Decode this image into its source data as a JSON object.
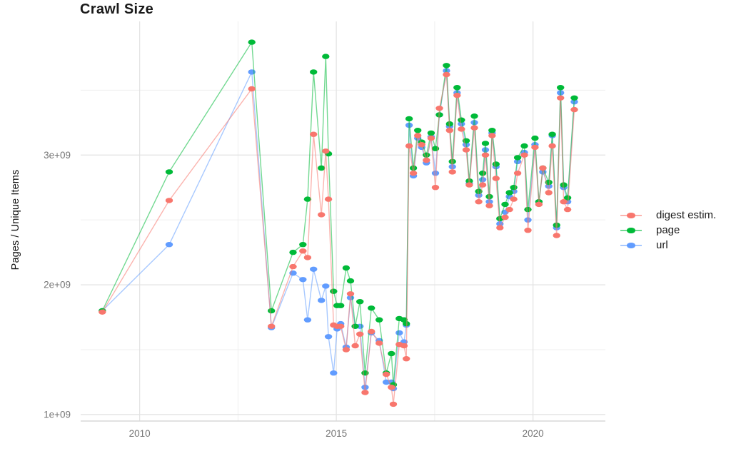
{
  "title": "Crawl Size",
  "y_axis": {
    "label": "Pages / Unique Items",
    "tick_labels": [
      "1e+09",
      "2e+09",
      "3e+09"
    ],
    "tick_values": [
      1,
      2,
      3
    ],
    "minor_tick_values": [
      1.5,
      2.5,
      3.5
    ],
    "range": [
      0.95,
      4.03
    ]
  },
  "x_axis": {
    "tick_labels": [
      "2010",
      "2015",
      "2020"
    ],
    "tick_values": [
      2010,
      2015,
      2020
    ],
    "minor_tick_values": [
      2012.5,
      2017.5
    ],
    "range": [
      2008.5,
      2021.84
    ]
  },
  "legend": {
    "items": [
      {
        "label": "digest estim.",
        "color": "#F8766D"
      },
      {
        "label": "page",
        "color": "#00BA38"
      },
      {
        "label": "url",
        "color": "#619CFF"
      }
    ]
  },
  "colors": {
    "digest": "#F8766D",
    "page": "#00BA38",
    "url": "#619CFF",
    "grid_major": "#e2e2e2",
    "grid_minor": "#efefef",
    "axis_line": "#d8d8d8",
    "tick_label": "#757575"
  },
  "chart_data": {
    "type": "line",
    "title": "Crawl Size",
    "xlabel": "",
    "ylabel": "Pages / Unique Items",
    "y_unit": "1e9 items",
    "xlim": [
      2008.5,
      2021.84
    ],
    "ylim_1e9": [
      0.95,
      4.03
    ],
    "grid": "on",
    "legend_position": "right",
    "x": [
      2009.05,
      2010.75,
      2012.85,
      2013.35,
      2013.9,
      2014.15,
      2014.27,
      2014.42,
      2014.62,
      2014.73,
      2014.8,
      2014.93,
      2015.02,
      2015.11,
      2015.25,
      2015.36,
      2015.48,
      2015.6,
      2015.73,
      2015.89,
      2016.09,
      2016.27,
      2016.4,
      2016.45,
      2016.6,
      2016.72,
      2016.78,
      2016.85,
      2016.96,
      2017.07,
      2017.17,
      2017.29,
      2017.41,
      2017.52,
      2017.62,
      2017.8,
      2017.88,
      2017.95,
      2018.07,
      2018.18,
      2018.3,
      2018.38,
      2018.51,
      2018.62,
      2018.72,
      2018.79,
      2018.89,
      2018.96,
      2019.06,
      2019.16,
      2019.29,
      2019.4,
      2019.51,
      2019.61,
      2019.78,
      2019.87,
      2020.05,
      2020.15,
      2020.25,
      2020.4,
      2020.49,
      2020.6,
      2020.7,
      2020.78,
      2020.88,
      2021.05
    ],
    "series": [
      {
        "name": "url",
        "color": "#619CFF",
        "values_1e9": [
          1.8,
          2.31,
          3.64,
          1.67,
          2.09,
          2.04,
          1.73,
          2.12,
          1.88,
          1.99,
          1.6,
          1.32,
          1.66,
          1.7,
          1.52,
          1.9,
          1.68,
          1.68,
          1.21,
          1.63,
          1.57,
          1.25,
          1.25,
          1.2,
          1.63,
          1.56,
          1.69,
          3.23,
          2.84,
          3.13,
          3.06,
          2.94,
          3.14,
          2.86,
          3.31,
          3.65,
          3.22,
          2.91,
          3.48,
          3.24,
          3.08,
          2.78,
          3.25,
          2.69,
          2.81,
          3.04,
          2.64,
          3.17,
          2.91,
          2.47,
          2.56,
          2.68,
          2.72,
          2.95,
          3.02,
          2.5,
          3.08,
          2.64,
          2.87,
          2.76,
          3.15,
          2.44,
          3.48,
          2.75,
          2.64,
          3.41
        ]
      },
      {
        "name": "page",
        "color": "#00BA38",
        "values_1e9": [
          1.8,
          2.87,
          3.87,
          1.8,
          2.25,
          2.31,
          2.66,
          3.64,
          2.9,
          3.76,
          3.01,
          1.95,
          1.84,
          1.84,
          2.13,
          2.03,
          1.68,
          1.87,
          1.32,
          1.82,
          1.73,
          1.32,
          1.47,
          1.23,
          1.74,
          1.73,
          1.7,
          3.28,
          2.9,
          3.19,
          3.1,
          3.0,
          3.17,
          3.05,
          3.31,
          3.69,
          3.24,
          2.95,
          3.52,
          3.27,
          3.11,
          2.8,
          3.3,
          2.72,
          2.86,
          3.09,
          2.68,
          3.19,
          2.93,
          2.51,
          2.62,
          2.71,
          2.75,
          2.98,
          3.07,
          2.58,
          3.13,
          2.64,
          2.9,
          2.79,
          3.16,
          2.46,
          3.52,
          2.77,
          2.67,
          3.44
        ]
      },
      {
        "name": "digest estim.",
        "color": "#F8766D",
        "values_1e9": [
          1.79,
          2.65,
          3.51,
          1.68,
          2.14,
          2.26,
          2.21,
          3.16,
          2.54,
          3.03,
          2.66,
          1.69,
          1.68,
          1.68,
          1.5,
          1.93,
          1.53,
          1.62,
          1.17,
          1.64,
          1.55,
          1.31,
          1.21,
          1.08,
          1.54,
          1.53,
          1.43,
          3.07,
          2.86,
          3.15,
          3.08,
          2.96,
          3.13,
          2.75,
          3.36,
          3.62,
          3.19,
          2.87,
          3.46,
          3.2,
          3.04,
          2.77,
          3.21,
          2.64,
          2.77,
          3.0,
          2.61,
          3.15,
          2.82,
          2.44,
          2.52,
          2.58,
          2.66,
          2.86,
          3.0,
          2.42,
          3.06,
          2.62,
          2.9,
          2.71,
          3.07,
          2.38,
          3.44,
          2.64,
          2.58,
          3.35
        ]
      }
    ]
  }
}
